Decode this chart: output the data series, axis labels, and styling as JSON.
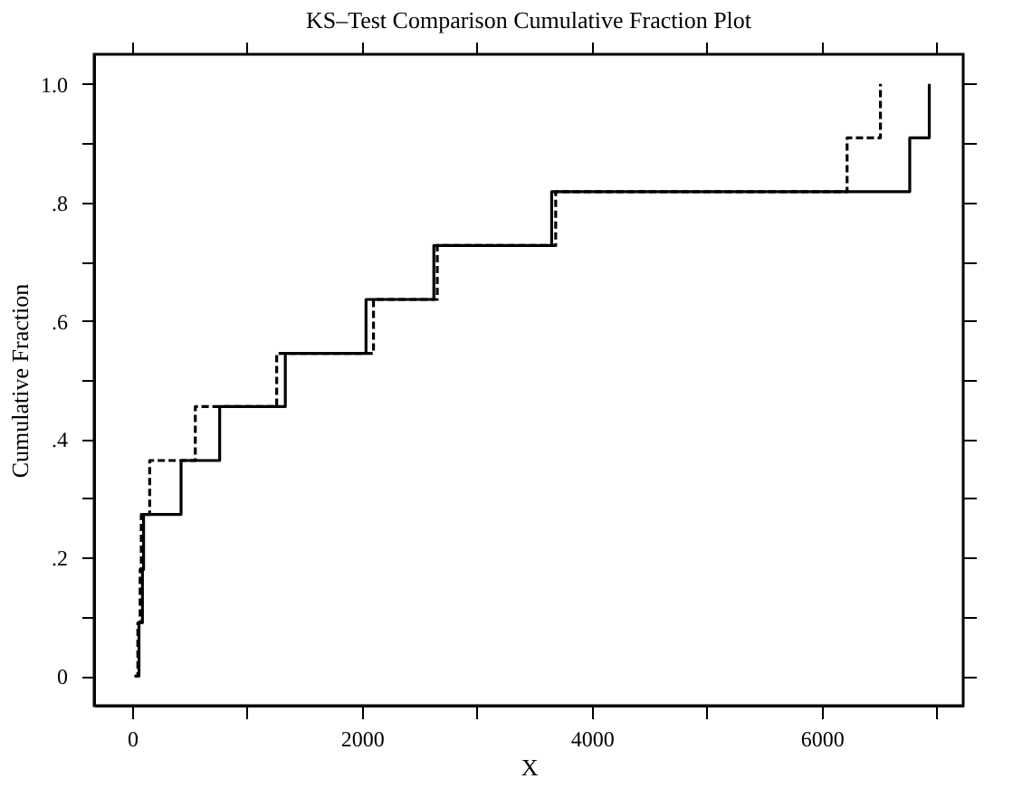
{
  "chart_data": {
    "type": "step",
    "title": "KS–Test Comparison Cumulative Fraction Plot",
    "xlabel": "X",
    "ylabel": "Cumulative Fraction",
    "xlim": [
      -330,
      7230
    ],
    "ylim": [
      -0.05,
      1.05
    ],
    "xticks": [
      0,
      {
        "value": 1000,
        "label": null
      },
      2000,
      {
        "value": 3000,
        "label": null
      },
      4000,
      {
        "value": 5000,
        "label": null
      },
      6000,
      {
        "value": 7000,
        "label": null
      }
    ],
    "yticks": [
      0,
      {
        "value": 0.1,
        "label": null
      },
      {
        "value": 0.2,
        "label": ".2"
      },
      {
        "value": 0.3,
        "label": null
      },
      {
        "value": 0.4,
        "label": ".4"
      },
      {
        "value": 0.5,
        "label": null
      },
      {
        "value": 0.6,
        "label": ".6"
      },
      {
        "value": 0.7,
        "label": null
      },
      {
        "value": 0.8,
        "label": ".8"
      },
      {
        "value": 0.9,
        "label": null
      },
      {
        "value": 1.0,
        "label": "1.0"
      }
    ],
    "grid": false,
    "series": [
      {
        "color": "#000000",
        "line_style": "solid",
        "x": [
          30,
          60,
          90,
          100,
          426,
          762,
          1333,
          2035,
          2625,
          3650,
          6765,
          6935
        ],
        "values": [
          0,
          0.09,
          0.18,
          0.273,
          0.364,
          0.455,
          0.545,
          0.636,
          0.727,
          0.818,
          0.909,
          1.0
        ]
      },
      {
        "color": "#000000",
        "line_style": "dashed",
        "x": [
          20,
          50,
          70,
          80,
          153,
          550,
          1258,
          2100,
          2655,
          3685,
          6220,
          6510
        ],
        "values": [
          0,
          0.09,
          0.18,
          0.273,
          0.364,
          0.455,
          0.545,
          0.636,
          0.727,
          0.818,
          0.909,
          1.0
        ]
      }
    ]
  }
}
